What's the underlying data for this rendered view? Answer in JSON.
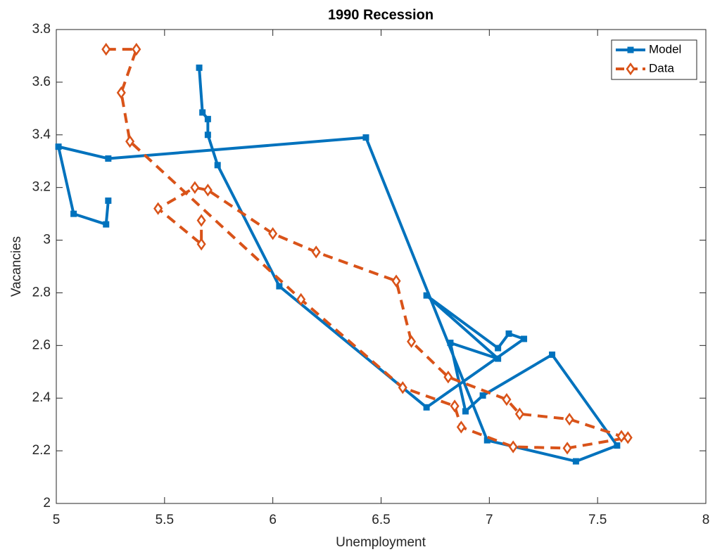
{
  "chart_data": {
    "type": "line",
    "title": "1990 Recession",
    "x_label": "Unemployment",
    "y_label": "Vacancies",
    "xlim": [
      5,
      8
    ],
    "xticks": [
      5,
      5.5,
      6,
      6.5,
      7,
      7.5,
      8
    ],
    "ylim": [
      2,
      3.8
    ],
    "yticks": [
      2,
      2.2,
      2.4,
      2.6,
      2.8,
      3,
      3.2,
      3.4,
      3.6,
      3.8
    ],
    "legend": "northeast",
    "grid": false,
    "series": [
      {
        "name": "Model",
        "color": "#0072BD",
        "marker": "square",
        "dash": "solid",
        "x": [
          5.24,
          5.23,
          5.08,
          5.01,
          5.24,
          6.43,
          6.99,
          7.4,
          7.59,
          7.29,
          6.97,
          6.89,
          6.82,
          7.04,
          6.71,
          7.04,
          7.09,
          7.16,
          6.71,
          6.03,
          5.745,
          5.7,
          5.7,
          5.675,
          5.66
        ],
        "values": [
          3.15,
          3.06,
          3.1,
          3.355,
          3.31,
          3.39,
          2.24,
          2.16,
          2.22,
          2.565,
          2.41,
          2.35,
          2.61,
          2.55,
          2.79,
          2.59,
          2.645,
          2.625,
          2.365,
          2.825,
          3.285,
          3.4,
          3.46,
          3.485,
          3.655
        ]
      },
      {
        "name": "Data",
        "color": "#D95319",
        "marker": "diamond",
        "dash": "dashed",
        "x": [
          5.23,
          5.37,
          5.3,
          5.34,
          6.13,
          6.6,
          6.84,
          6.87,
          7.11,
          7.36,
          7.64,
          7.61,
          7.37,
          7.14,
          7.08,
          6.81,
          6.64,
          6.57,
          6.2,
          6.0,
          5.7,
          5.64,
          5.47,
          5.67,
          5.67
        ],
        "values": [
          3.725,
          3.725,
          3.56,
          3.375,
          2.775,
          2.44,
          2.37,
          2.29,
          2.215,
          2.21,
          2.25,
          2.255,
          2.32,
          2.34,
          2.395,
          2.48,
          2.615,
          2.845,
          2.955,
          3.025,
          3.19,
          3.2,
          3.12,
          2.985,
          3.075
        ]
      }
    ]
  }
}
